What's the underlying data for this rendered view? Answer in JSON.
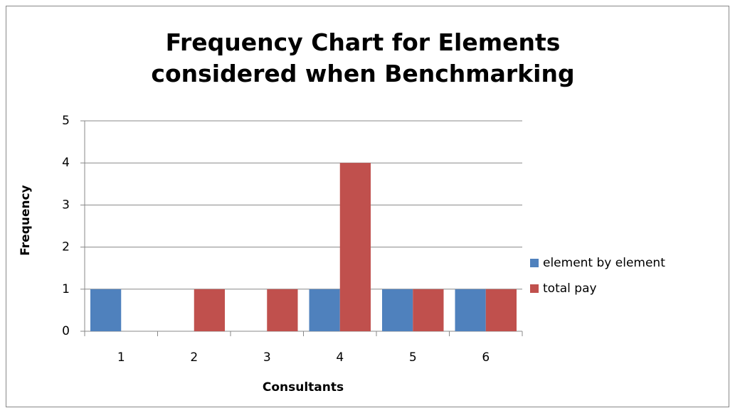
{
  "chart_data": {
    "type": "bar",
    "title": "Frequency Chart for Elements considered when Benchmarking",
    "x_label": "Consultants",
    "y_label": "Frequency",
    "categories": [
      "1",
      "2",
      "3",
      "4",
      "5",
      "6"
    ],
    "series": [
      {
        "name": "element by element",
        "color": "#4f81bd",
        "values": [
          1,
          0,
          0,
          1,
          1,
          1
        ]
      },
      {
        "name": "total pay",
        "color": "#c0504d",
        "values": [
          0,
          1,
          1,
          4,
          1,
          1
        ]
      }
    ],
    "ylim": [
      0,
      5
    ],
    "yticks": [
      0,
      1,
      2,
      3,
      4,
      5
    ],
    "grid": true,
    "legend": "right"
  }
}
